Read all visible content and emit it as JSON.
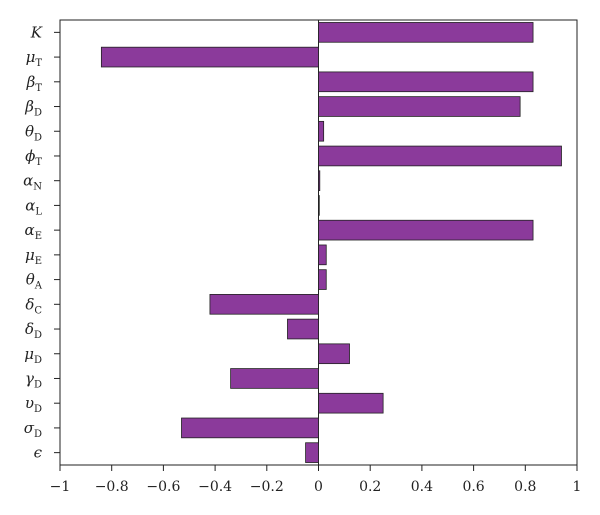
{
  "chart_data": {
    "type": "bar",
    "orientation": "horizontal",
    "title": "",
    "xlabel": "",
    "ylabel": "",
    "xlim": [
      -1,
      1
    ],
    "xticks": [
      -1,
      -0.8,
      -0.6,
      -0.4,
      -0.2,
      0,
      0.2,
      0.4,
      0.6,
      0.8,
      1
    ],
    "xtick_labels": [
      "−1",
      "−0.8",
      "−0.6",
      "−0.4",
      "−0.2",
      "0",
      "0.2",
      "0.4",
      "0.6",
      "0.8",
      "1"
    ],
    "grid": false,
    "bar_color": "#8B3A9B",
    "bar_edge_color": "#222222",
    "categories": [
      {
        "main": "K",
        "sub": "",
        "italic": false
      },
      {
        "main": "μ",
        "sub": "T",
        "italic": true
      },
      {
        "main": "β",
        "sub": "T",
        "italic": true
      },
      {
        "main": "β",
        "sub": "D",
        "italic": true
      },
      {
        "main": "θ",
        "sub": "D",
        "italic": true
      },
      {
        "main": "ϕ",
        "sub": "T",
        "italic": true
      },
      {
        "main": "α",
        "sub": "N",
        "italic": true
      },
      {
        "main": "α",
        "sub": "L",
        "italic": true
      },
      {
        "main": "α",
        "sub": "E",
        "italic": true
      },
      {
        "main": "μ",
        "sub": "E",
        "italic": true
      },
      {
        "main": "θ",
        "sub": "A",
        "italic": true
      },
      {
        "main": "δ",
        "sub": "C",
        "italic": true
      },
      {
        "main": "δ",
        "sub": "D",
        "italic": true
      },
      {
        "main": "μ",
        "sub": "D",
        "italic": true
      },
      {
        "main": "γ",
        "sub": "D",
        "italic": true
      },
      {
        "main": "υ",
        "sub": "D",
        "italic": true
      },
      {
        "main": "σ",
        "sub": "D",
        "italic": true
      },
      {
        "main": "ϵ",
        "sub": "",
        "italic": true
      }
    ],
    "values": [
      0.83,
      -0.84,
      0.83,
      0.78,
      0.02,
      0.94,
      0.005,
      0.003,
      0.83,
      0.03,
      0.03,
      -0.42,
      -0.12,
      0.12,
      -0.34,
      0.25,
      -0.53,
      -0.05
    ]
  }
}
